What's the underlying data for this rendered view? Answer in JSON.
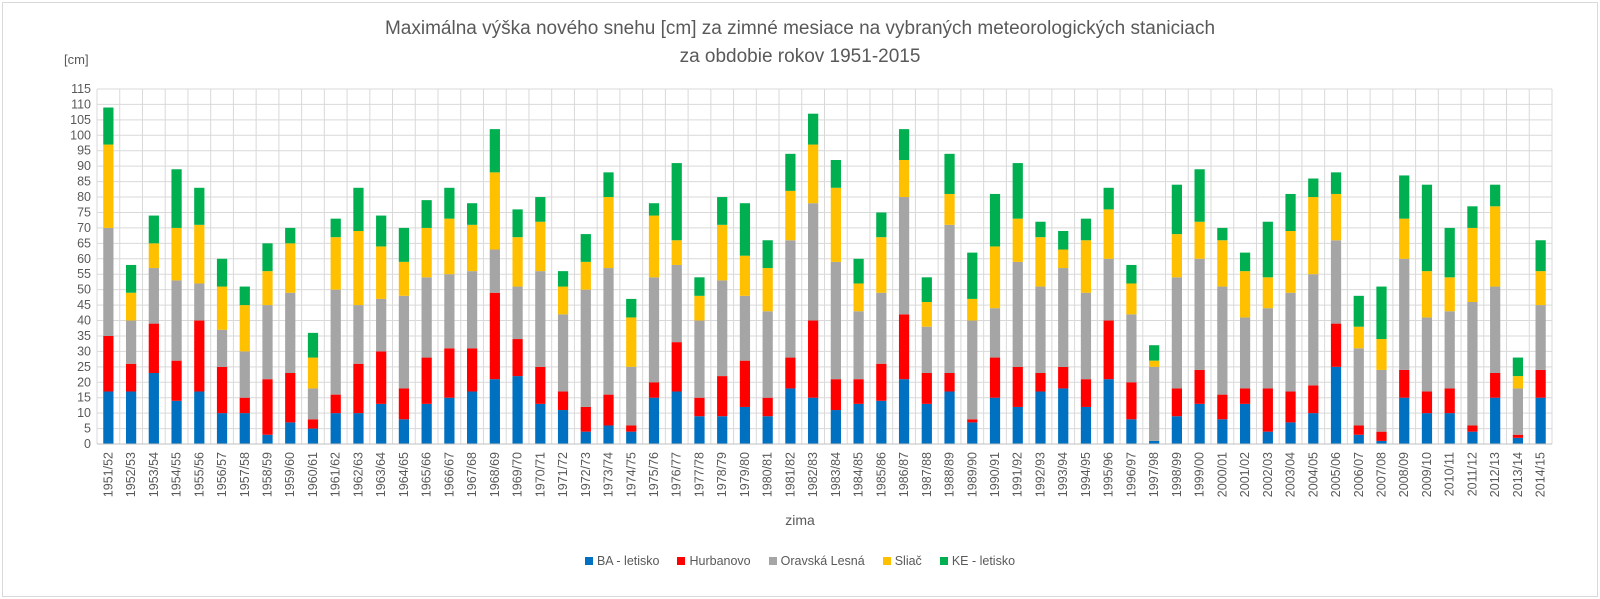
{
  "chart_data": {
    "type": "bar",
    "stacked": true,
    "title": "Maximálna výška nového snehu [cm] za zimné mesiace na vybraných meteorologických staniciach",
    "subtitle": "za obdobie rokov 1951-2015",
    "ylabel": "[cm]",
    "xlabel": "zima",
    "ylim": [
      0,
      115
    ],
    "ytick_step": 5,
    "grid": true,
    "legend_position": "bottom",
    "categories": [
      "1951/52",
      "1952/53",
      "1953/54",
      "1954/55",
      "1955/56",
      "1956/57",
      "1957/58",
      "1958/59",
      "1959/60",
      "1960/61",
      "1961/62",
      "1962/63",
      "1963/64",
      "1964/65",
      "1965/66",
      "1966/67",
      "1967/68",
      "1968/69",
      "1969/70",
      "1970/71",
      "1971/72",
      "1972/73",
      "1973/74",
      "1974/75",
      "1975/76",
      "1976/77",
      "1977/78",
      "1978/79",
      "1979/80",
      "1980/81",
      "1981/82",
      "1982/83",
      "1983/84",
      "1984/85",
      "1985/86",
      "1986/87",
      "1987/88",
      "1988/89",
      "1989/90",
      "1990/91",
      "1991/92",
      "1992/93",
      "1993/94",
      "1994/95",
      "1995/96",
      "1996/97",
      "1997/98",
      "1998/99",
      "1999/00",
      "2000/01",
      "2001/02",
      "2002/03",
      "2003/04",
      "2004/05",
      "2005/06",
      "2006/07",
      "2007/08",
      "2008/09",
      "2009/10",
      "2010/11",
      "2011/12",
      "2012/13",
      "2013/14",
      "2014/15"
    ],
    "series": [
      {
        "name": "BA - letisko",
        "color": "#0070c0",
        "values": [
          17,
          17,
          23,
          14,
          17,
          10,
          10,
          3,
          7,
          5,
          10,
          10,
          13,
          8,
          13,
          15,
          17,
          21,
          22,
          13,
          11,
          4,
          6,
          4,
          15,
          17,
          9,
          9,
          12,
          9,
          18,
          15,
          11,
          13,
          14,
          21,
          13,
          17,
          7,
          15,
          12,
          17,
          18,
          12,
          21,
          8,
          1,
          9,
          13,
          8,
          13,
          4,
          7,
          10,
          25,
          3,
          1,
          15,
          10,
          10,
          4,
          15,
          2,
          15
        ]
      },
      {
        "name": "Hurbanovo",
        "color": "#ff0000",
        "values": [
          18,
          9,
          16,
          13,
          23,
          15,
          5,
          18,
          16,
          3,
          6,
          16,
          17,
          10,
          15,
          16,
          14,
          28,
          12,
          12,
          6,
          8,
          10,
          2,
          5,
          16,
          6,
          13,
          15,
          6,
          10,
          25,
          10,
          8,
          12,
          21,
          10,
          6,
          1,
          13,
          13,
          6,
          7,
          9,
          19,
          12,
          0,
          9,
          11,
          8,
          5,
          14,
          10,
          9,
          14,
          3,
          3,
          9,
          7,
          8,
          2,
          8,
          1,
          9
        ]
      },
      {
        "name": "Oravská Lesná",
        "color": "#a5a5a5",
        "values": [
          35,
          14,
          18,
          26,
          12,
          12,
          15,
          24,
          26,
          10,
          34,
          19,
          17,
          30,
          26,
          24,
          25,
          14,
          17,
          31,
          25,
          38,
          41,
          19,
          34,
          25,
          25,
          31,
          21,
          28,
          38,
          38,
          38,
          22,
          23,
          38,
          15,
          48,
          32,
          16,
          34,
          28,
          32,
          28,
          20,
          22,
          24,
          36,
          36,
          35,
          23,
          26,
          32,
          36,
          27,
          25,
          20,
          36,
          24,
          25,
          40,
          28,
          15,
          21
        ]
      },
      {
        "name": "Sliač",
        "color": "#ffc000",
        "values": [
          27,
          9,
          8,
          17,
          19,
          14,
          15,
          11,
          16,
          10,
          17,
          24,
          17,
          11,
          16,
          18,
          15,
          25,
          16,
          16,
          9,
          9,
          23,
          16,
          20,
          8,
          8,
          18,
          13,
          14,
          16,
          19,
          24,
          9,
          18,
          12,
          8,
          10,
          7,
          20,
          14,
          16,
          6,
          17,
          16,
          10,
          2,
          14,
          12,
          15,
          15,
          10,
          20,
          25,
          15,
          7,
          10,
          13,
          15,
          11,
          24,
          26,
          4,
          11
        ]
      },
      {
        "name": "KE - letisko",
        "color": "#00b050",
        "values": [
          12,
          9,
          9,
          19,
          12,
          9,
          6,
          9,
          5,
          8,
          6,
          14,
          10,
          11,
          9,
          10,
          7,
          14,
          9,
          8,
          5,
          9,
          8,
          6,
          4,
          25,
          6,
          9,
          17,
          9,
          12,
          10,
          9,
          8,
          8,
          10,
          8,
          13,
          15,
          17,
          18,
          5,
          6,
          7,
          7,
          6,
          5,
          16,
          17,
          4,
          6,
          18,
          12,
          6,
          7,
          10,
          17,
          14,
          28,
          16,
          7,
          7,
          6,
          10
        ]
      }
    ]
  }
}
